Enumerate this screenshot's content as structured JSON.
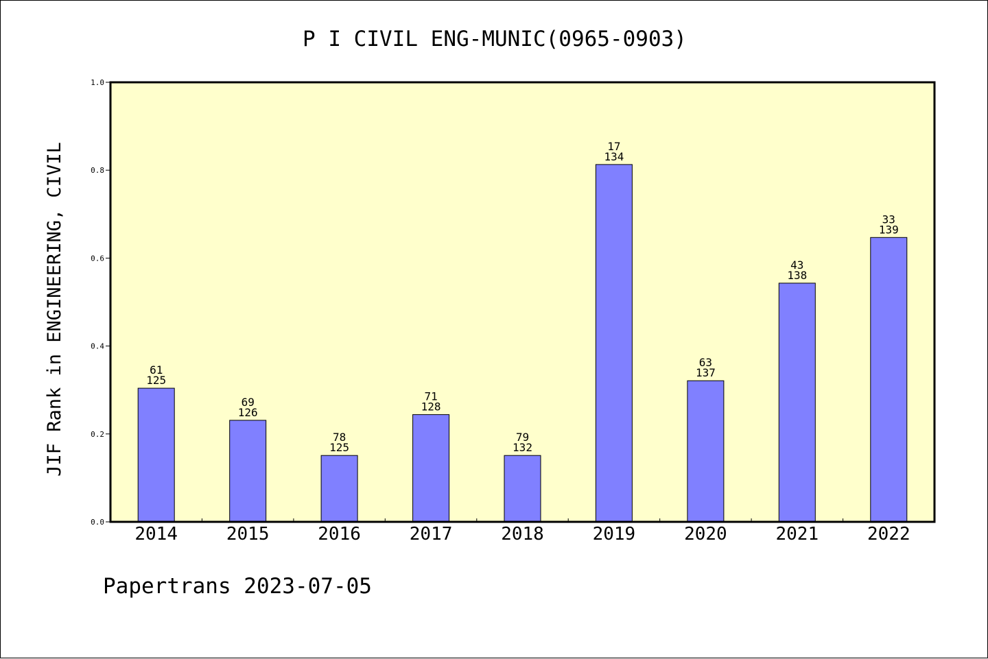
{
  "colors": {
    "background": "#ffffff",
    "plot_background": "#ffffcc",
    "bar_fill": "#8080ff",
    "bar_stroke": "#000000",
    "text": "#000000"
  },
  "footer": {
    "source_label": "Papertrans 2023-07-05"
  },
  "chart_data": {
    "type": "bar",
    "title": "P I CIVIL ENG-MUNIC(0965-0903)",
    "xlabel": "",
    "ylabel": "JIF Rank in ENGINEERING, CIVIL",
    "ylim": [
      0,
      1.0
    ],
    "yticks": [
      {
        "value": 0.0,
        "label": "0.0"
      },
      {
        "value": 0.2,
        "label": "0.2"
      },
      {
        "value": 0.4,
        "label": "0.4"
      },
      {
        "value": 0.6,
        "label": "0.6"
      },
      {
        "value": 0.8,
        "label": "0.8"
      },
      {
        "value": 1.0,
        "label": "1.0"
      }
    ],
    "grid": false,
    "legend": "none",
    "categories": [
      "2014",
      "2015",
      "2016",
      "2017",
      "2018",
      "2019",
      "2020",
      "2021",
      "2022"
    ],
    "values": [
      0.304,
      0.231,
      0.151,
      0.244,
      0.151,
      0.813,
      0.321,
      0.543,
      0.647
    ],
    "rank_labels": [
      "61",
      "69",
      "78",
      "71",
      "79",
      "17",
      "63",
      "43",
      "33"
    ],
    "total_labels": [
      "125",
      "126",
      "125",
      "128",
      "132",
      "134",
      "137",
      "138",
      "139"
    ]
  }
}
